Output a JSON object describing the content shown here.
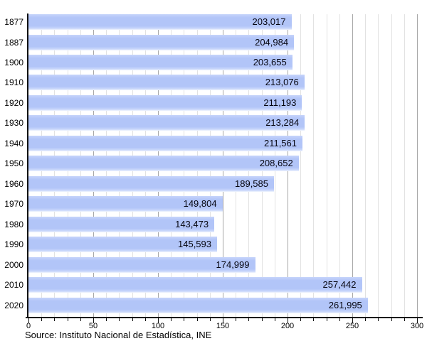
{
  "chart_data": {
    "type": "bar",
    "orientation": "horizontal",
    "title": "",
    "categories": [
      "1877",
      "1887",
      "1900",
      "1910",
      "1920",
      "1930",
      "1940",
      "1950",
      "1960",
      "1970",
      "1980",
      "1990",
      "2000",
      "2010",
      "2020"
    ],
    "values": [
      203017,
      204984,
      203655,
      213076,
      211193,
      213284,
      211561,
      208652,
      189585,
      149804,
      143473,
      145593,
      174999,
      257442,
      261995
    ],
    "value_labels": [
      "203,017",
      "204,984",
      "203,655",
      "213,076",
      "211,193",
      "213,284",
      "211,561",
      "208,652",
      "189,585",
      "149,804",
      "143,473",
      "145,593",
      "174,999",
      "257,442",
      "261,995"
    ],
    "xlabel": "",
    "ylabel": "",
    "xlim": [
      0,
      300000
    ],
    "xtick_step": 50000,
    "minor_grid_step": 10000,
    "xtick_labels": [
      "0",
      "50",
      "100",
      "150",
      "200",
      "250",
      "300"
    ],
    "grid": true,
    "legend": null
  },
  "caption": {
    "source_text": "Source: Instituto Nacional de Estadística, INE"
  },
  "colors": {
    "bar_fill": "#b2c5f8",
    "minor_gridline": "#e2e2e2",
    "major_gridline": "#a8a8a8",
    "axis": "#111111",
    "label_text": "#050510"
  }
}
